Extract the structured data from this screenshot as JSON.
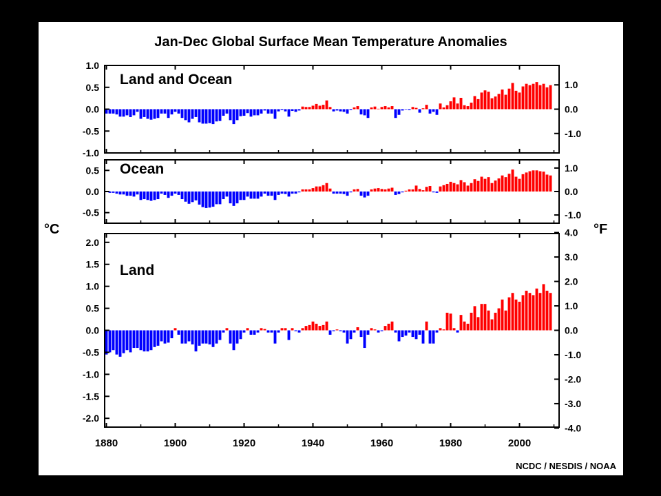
{
  "title": "Jan-Dec Global Surface Mean Temperature Anomalies",
  "credit": "NCDC / NESDIS / NOAA",
  "units": {
    "left": "°C",
    "right": "°F"
  },
  "colors": {
    "positive": "#ff0000",
    "negative": "#0000ff",
    "background": "#ffffff",
    "frame": "#000000"
  },
  "x_ticks": [
    "1880",
    "1900",
    "1920",
    "1940",
    "1960",
    "1980",
    "2000"
  ],
  "chart_data": [
    {
      "type": "bar",
      "title": "Land and Ocean",
      "x_start": 1880,
      "x_end": 2009,
      "ylim": [
        -1.0,
        1.0
      ],
      "y_ticks": [
        "1.0",
        "0.5",
        "0.0",
        "-0.5",
        "-1.0"
      ],
      "y2_ticks": [
        "1.0",
        "0.0",
        "-1.0"
      ],
      "values": [
        -0.1,
        -0.1,
        -0.1,
        -0.12,
        -0.17,
        -0.17,
        -0.14,
        -0.18,
        -0.14,
        -0.06,
        -0.22,
        -0.18,
        -0.22,
        -0.24,
        -0.22,
        -0.2,
        -0.1,
        -0.1,
        -0.2,
        -0.12,
        -0.06,
        -0.1,
        -0.2,
        -0.25,
        -0.3,
        -0.22,
        -0.18,
        -0.3,
        -0.33,
        -0.33,
        -0.32,
        -0.34,
        -0.28,
        -0.27,
        -0.15,
        -0.1,
        -0.25,
        -0.34,
        -0.25,
        -0.16,
        -0.15,
        -0.09,
        -0.17,
        -0.14,
        -0.14,
        -0.1,
        -0.03,
        -0.1,
        -0.1,
        -0.22,
        -0.05,
        -0.02,
        -0.05,
        -0.17,
        -0.04,
        -0.06,
        -0.03,
        0.06,
        0.05,
        0.05,
        0.08,
        0.12,
        0.08,
        0.1,
        0.2,
        0.05,
        -0.05,
        -0.03,
        -0.05,
        -0.06,
        -0.1,
        -0.02,
        0.04,
        0.07,
        -0.12,
        -0.14,
        -0.2,
        0.04,
        0.06,
        0.01,
        0.05,
        0.07,
        0.04,
        0.07,
        -0.2,
        -0.13,
        -0.03,
        -0.01,
        -0.02,
        0.05,
        0.03,
        -0.08,
        0.02,
        0.1,
        -0.1,
        -0.06,
        -0.13,
        0.13,
        0.04,
        0.09,
        0.18,
        0.27,
        0.13,
        0.26,
        0.09,
        0.07,
        0.15,
        0.3,
        0.23,
        0.38,
        0.43,
        0.4,
        0.25,
        0.29,
        0.35,
        0.45,
        0.33,
        0.47,
        0.6,
        0.42,
        0.38,
        0.52,
        0.58,
        0.55,
        0.58,
        0.62,
        0.55,
        0.58,
        0.5,
        0.55
      ]
    },
    {
      "type": "bar",
      "title": "Ocean",
      "x_start": 1880,
      "x_end": 2009,
      "ylim": [
        -0.75,
        0.75
      ],
      "y_ticks": [
        "0.5",
        "0.0",
        "-0.5"
      ],
      "y2_ticks": [
        "1.0",
        "0.0",
        "-1.0"
      ],
      "values": [
        0.0,
        -0.03,
        -0.03,
        -0.05,
        -0.07,
        -0.07,
        -0.1,
        -0.1,
        -0.12,
        -0.07,
        -0.2,
        -0.18,
        -0.2,
        -0.22,
        -0.2,
        -0.18,
        -0.05,
        -0.08,
        -0.15,
        -0.1,
        -0.05,
        -0.08,
        -0.18,
        -0.24,
        -0.29,
        -0.25,
        -0.21,
        -0.31,
        -0.37,
        -0.39,
        -0.38,
        -0.36,
        -0.3,
        -0.3,
        -0.18,
        -0.12,
        -0.28,
        -0.34,
        -0.28,
        -0.2,
        -0.2,
        -0.12,
        -0.17,
        -0.17,
        -0.17,
        -0.12,
        -0.05,
        -0.1,
        -0.1,
        -0.2,
        -0.08,
        -0.05,
        -0.06,
        -0.12,
        -0.05,
        -0.05,
        -0.02,
        0.05,
        0.05,
        0.05,
        0.08,
        0.12,
        0.12,
        0.15,
        0.2,
        0.07,
        -0.05,
        -0.05,
        -0.05,
        -0.06,
        -0.1,
        -0.02,
        0.05,
        0.06,
        -0.1,
        -0.14,
        -0.1,
        0.05,
        0.07,
        0.08,
        0.06,
        0.05,
        0.07,
        0.09,
        -0.08,
        -0.06,
        -0.02,
        0.02,
        0.05,
        0.05,
        0.14,
        0.06,
        0.03,
        0.11,
        0.13,
        -0.02,
        -0.03,
        0.12,
        0.15,
        0.18,
        0.23,
        0.2,
        0.17,
        0.27,
        0.22,
        0.14,
        0.2,
        0.29,
        0.25,
        0.35,
        0.3,
        0.34,
        0.2,
        0.26,
        0.31,
        0.38,
        0.34,
        0.42,
        0.52,
        0.35,
        0.3,
        0.41,
        0.45,
        0.48,
        0.5,
        0.5,
        0.48,
        0.47,
        0.4,
        0.38
      ]
    },
    {
      "type": "bar",
      "title": "Land",
      "x_start": 1880,
      "x_end": 2009,
      "ylim": [
        -2.2,
        2.2
      ],
      "y_ticks": [
        "2.0",
        "1.5",
        "1.0",
        "0.5",
        "0.0",
        "-0.5",
        "-1.0",
        "-1.5",
        "-2.0"
      ],
      "y2_ticks": [
        "4.0",
        "3.0",
        "2.0",
        "1.0",
        "0.0",
        "-1.0",
        "-2.0",
        "-3.0",
        "-4.0"
      ],
      "values": [
        -0.55,
        -0.5,
        -0.45,
        -0.55,
        -0.6,
        -0.52,
        -0.45,
        -0.5,
        -0.4,
        -0.4,
        -0.45,
        -0.48,
        -0.48,
        -0.45,
        -0.38,
        -0.35,
        -0.25,
        -0.3,
        -0.28,
        -0.18,
        0.05,
        -0.1,
        -0.3,
        -0.3,
        -0.25,
        -0.32,
        -0.48,
        -0.35,
        -0.3,
        -0.3,
        -0.32,
        -0.38,
        -0.3,
        -0.22,
        -0.05,
        0.05,
        -0.3,
        -0.45,
        -0.3,
        -0.2,
        -0.05,
        0.05,
        -0.1,
        -0.1,
        -0.05,
        0.05,
        0.03,
        -0.05,
        -0.05,
        -0.3,
        -0.05,
        0.05,
        0.05,
        -0.22,
        0.05,
        -0.02,
        -0.05,
        0.05,
        0.1,
        0.12,
        0.2,
        0.15,
        0.1,
        0.12,
        0.2,
        -0.1,
        -0.02,
        0.02,
        -0.02,
        -0.05,
        -0.3,
        -0.2,
        -0.05,
        0.07,
        -0.15,
        -0.4,
        -0.1,
        0.05,
        0.02,
        -0.05,
        -0.02,
        0.1,
        0.15,
        0.2,
        -0.05,
        -0.25,
        -0.15,
        -0.12,
        -0.05,
        -0.15,
        -0.2,
        -0.1,
        -0.3,
        0.2,
        -0.3,
        -0.3,
        -0.05,
        0.05,
        0.02,
        0.4,
        0.38,
        0.05,
        -0.05,
        0.35,
        0.2,
        0.15,
        0.4,
        0.55,
        0.3,
        0.6,
        0.6,
        0.45,
        0.25,
        0.4,
        0.5,
        0.7,
        0.45,
        0.75,
        0.85,
        0.7,
        0.65,
        0.8,
        0.9,
        0.85,
        0.8,
        0.95,
        0.85,
        1.05,
        0.9,
        0.85
      ]
    }
  ]
}
